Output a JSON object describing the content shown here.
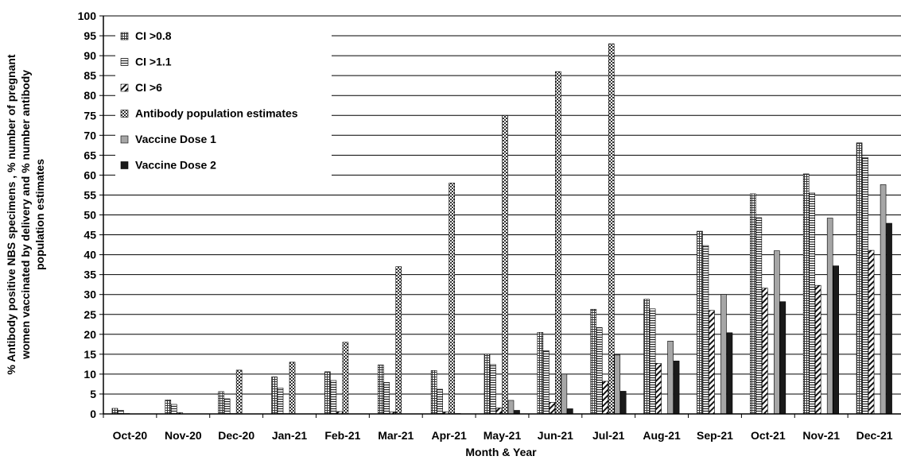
{
  "chart_data": {
    "type": "bar",
    "title": "",
    "xlabel": "Month & Year",
    "ylabel_lines": [
      "% Antibody positive NBS specimens , % number of pregnant",
      "women vaccinated by delivery and % number antibody",
      "population estimates"
    ],
    "ylim": [
      0,
      100
    ],
    "yticks": [
      0,
      5,
      10,
      15,
      20,
      25,
      30,
      35,
      40,
      45,
      50,
      55,
      60,
      65,
      70,
      75,
      80,
      85,
      90,
      95,
      100
    ],
    "grid": "horizontal",
    "legend_position": "top-left",
    "categories": [
      "Oct-20",
      "Nov-20",
      "Dec-20",
      "Jan-21",
      "Feb-21",
      "Mar-21",
      "Apr-21",
      "May-21",
      "Jun-21",
      "Jul-21",
      "Aug-21",
      "Sep-21",
      "Oct-21",
      "Nov-21",
      "Dec-21"
    ],
    "series": [
      {
        "name": "CI >0.8",
        "pattern": "grid-fine",
        "values": [
          1.4,
          3.5,
          5.6,
          9.3,
          10.6,
          12.3,
          10.9,
          15.0,
          20.5,
          26.3,
          28.8,
          45.9,
          55.3,
          60.3,
          68.1
        ]
      },
      {
        "name": "CI >1.1",
        "pattern": "horizontal",
        "values": [
          0.9,
          2.4,
          3.8,
          6.5,
          8.4,
          7.9,
          6.2,
          12.4,
          15.9,
          21.7,
          26.4,
          42.3,
          49.3,
          55.5,
          64.4
        ]
      },
      {
        "name": "CI >6",
        "pattern": "diagonal",
        "values": [
          0.1,
          0.3,
          0.1,
          0.1,
          0.6,
          0.5,
          0.5,
          1.5,
          2.9,
          8.2,
          12.7,
          26.0,
          31.6,
          32.3,
          41.1
        ]
      },
      {
        "name": "Antibody population estimates",
        "pattern": "checker",
        "values": [
          0,
          0,
          11.0,
          13.0,
          18.0,
          37.0,
          58.0,
          75.0,
          86.0,
          93.0,
          0,
          0,
          0,
          0,
          0
        ]
      },
      {
        "name": "Vaccine Dose 1",
        "pattern": "solid-gray",
        "color": "#a6a6a6",
        "values": [
          0,
          0,
          0,
          0,
          0,
          0,
          0.1,
          3.4,
          10.0,
          14.8,
          18.3,
          30.0,
          41.0,
          49.2,
          57.6
        ]
      },
      {
        "name": "Vaccine Dose 2",
        "pattern": "solid-black",
        "color": "#1a1a1a",
        "values": [
          0,
          0,
          0,
          0,
          0,
          0,
          0,
          0.9,
          1.3,
          5.7,
          13.3,
          20.4,
          28.2,
          37.2,
          47.9
        ]
      }
    ]
  }
}
